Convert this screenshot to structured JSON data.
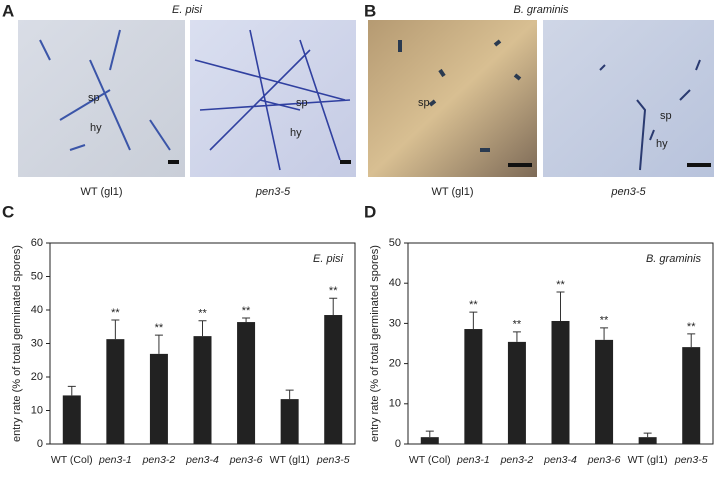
{
  "panels": [
    {
      "letter": "A",
      "title": "E. pisi",
      "images": [
        {
          "caption": "WT (gl1)",
          "labels": [
            "sp",
            "hy"
          ]
        },
        {
          "caption": "pen3-5",
          "labels": [
            "sp",
            "hy"
          ]
        }
      ]
    },
    {
      "letter": "B",
      "title": "B. graminis",
      "images": [
        {
          "caption": "WT (gl1)",
          "labels": [
            "sp"
          ]
        },
        {
          "caption": "pen3-5",
          "labels": [
            "sp",
            "hy"
          ]
        }
      ]
    }
  ],
  "chart_data": [
    {
      "type": "bar",
      "panel": "C",
      "title": "E. pisi",
      "ylabel": "entry rate (% of total germinated spores)",
      "categories": [
        "WT (Col)",
        "pen3-1",
        "pen3-2",
        "pen3-4",
        "pen3-6",
        "WT (gl1)",
        "pen3-5"
      ],
      "values": [
        14.5,
        31.3,
        26.9,
        32.2,
        36.4,
        13.4,
        38.5
      ],
      "errors": [
        2.7,
        5.7,
        5.6,
        4.6,
        1.2,
        2.7,
        5.0
      ],
      "significance": [
        null,
        "**",
        "**",
        "**",
        "**",
        null,
        "**"
      ],
      "color": "#222222",
      "ylim": [
        0,
        60
      ],
      "yticks": [
        0,
        10,
        20,
        30,
        40,
        50,
        60
      ]
    },
    {
      "type": "bar",
      "panel": "D",
      "title": "B. graminis",
      "ylabel": "entry rate (% of total germinated spores)",
      "categories": [
        "WT (Col)",
        "pen3-1",
        "pen3-2",
        "pen3-4",
        "pen3-6",
        "WT (gl1)",
        "pen3-5"
      ],
      "values": [
        1.7,
        28.6,
        25.4,
        30.6,
        25.9,
        1.7,
        24.1
      ],
      "errors": [
        1.5,
        4.2,
        2.5,
        7.2,
        3.0,
        1.0,
        3.3
      ],
      "significance": [
        null,
        "**",
        "**",
        "**",
        "**",
        null,
        "**"
      ],
      "color": "#222222",
      "ylim": [
        0,
        50
      ],
      "yticks": [
        0,
        10,
        20,
        30,
        40,
        50
      ]
    }
  ]
}
